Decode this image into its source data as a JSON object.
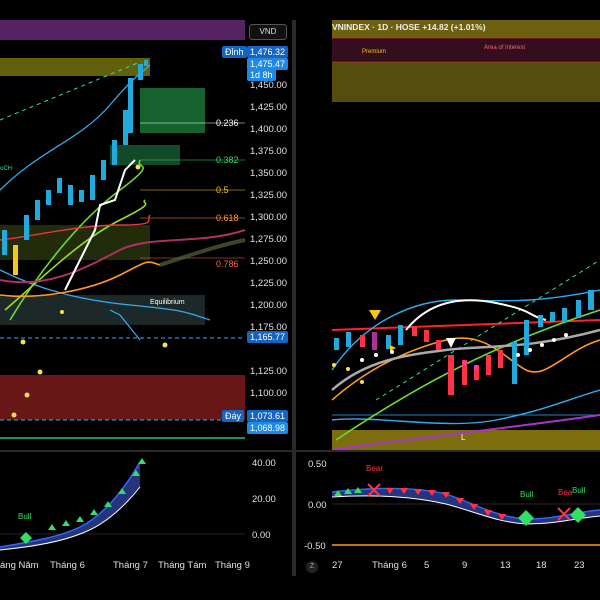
{
  "left_chart": {
    "currency": "VND",
    "price_axis": [
      "1,450.00",
      "1,425.00",
      "1,400.00",
      "1,375.00",
      "1,350.00",
      "1,325.00",
      "1,300.00",
      "1,275.00",
      "1,250.00",
      "1,225.00",
      "1,200.00",
      "1,175.00",
      "1,125.00",
      "1,100.00"
    ],
    "tags": {
      "peak_label": "Đỉnh",
      "peak_value": "1,476.32",
      "last_price": "1,475.47",
      "countdown": "1d 8h",
      "mid_value": "1,165.77",
      "trough_label": "Đáy",
      "trough_value": "1,073.61",
      "low_value": "1,068.98"
    },
    "fib_levels": [
      "0.236",
      "0.382",
      "0.5",
      "0.618",
      "0.786"
    ],
    "labels": {
      "equilibrium": "Equilibrium",
      "choch": "oCH"
    },
    "colors": {
      "fib_0236": "#ffffff",
      "fib_0382": "#33dd66",
      "fib_05": "#f5c518",
      "fib_0618": "#ff9933",
      "fib_0786": "#ff6644"
    }
  },
  "left_osc": {
    "axis": [
      "40.00",
      "20.00",
      "0.00"
    ],
    "signal_label": "Bull"
  },
  "left_time_axis": [
    "áng Năm",
    "Tháng 6",
    "Tháng 7",
    "Tháng Tám",
    "Tháng 9"
  ],
  "right_chart": {
    "header": "VNINDEX · 1D · HOSE  +14.82 (+1.01%)",
    "premium_label": "Premium",
    "aoi_label": "Area of Interest",
    "low_marker": "L"
  },
  "right_osc": {
    "axis": [
      "0.50",
      "0.00",
      "-0.50"
    ],
    "labels": {
      "bear_1": "Bear",
      "bull_1": "Bull",
      "bear_2": "Bea",
      "bull_2": "Bull"
    }
  },
  "right_time_axis": [
    "27",
    "Tháng 6",
    "5",
    "9",
    "13",
    "18",
    "23"
  ],
  "zoom_icon_text": "Z"
}
